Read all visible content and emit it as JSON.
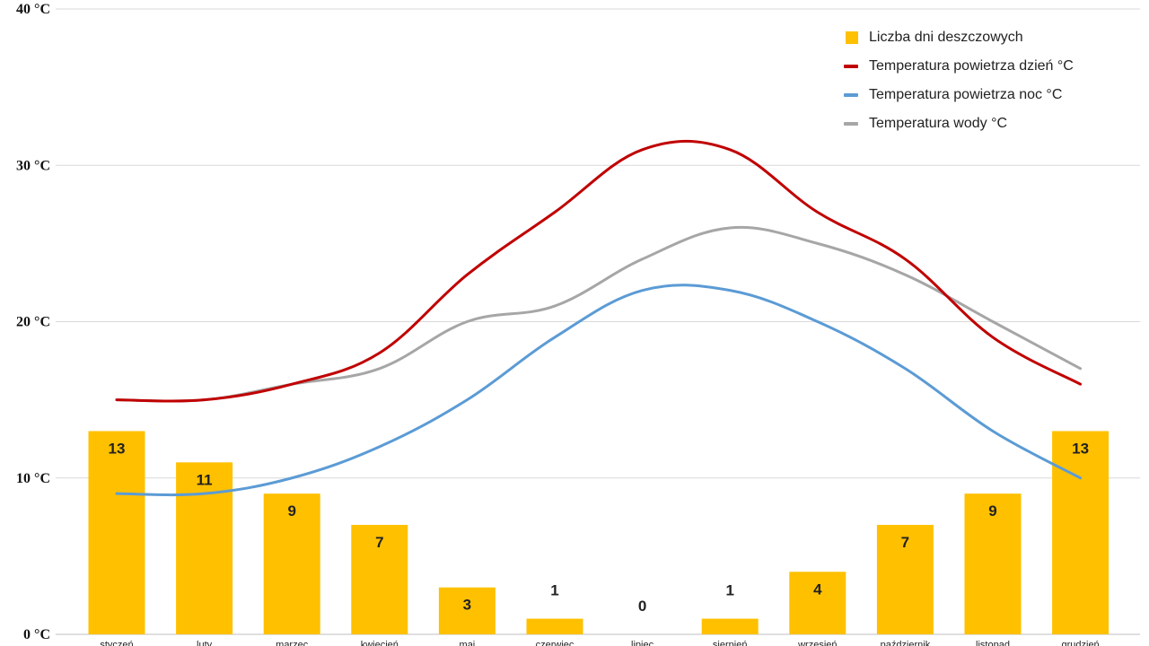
{
  "chart_data": {
    "type": "bar",
    "title": "",
    "xlabel": "",
    "ylabel": "",
    "ylim": [
      0,
      40
    ],
    "y_ticks": [
      "0 °C",
      "10 °C",
      "20 °C",
      "30 °C",
      "40 °C"
    ],
    "grid": true,
    "legend_position": "top-right",
    "categories": [
      "styczeń",
      "luty",
      "marzec",
      "kwiecień",
      "maj",
      "czerwiec",
      "lipiec",
      "sierpień",
      "wrzesień",
      "październik",
      "listopad",
      "grudzień"
    ],
    "bars": {
      "name": "Liczba dni deszczowych",
      "color": "#FFC000",
      "values": [
        13,
        11,
        9,
        7,
        3,
        1,
        0,
        1,
        4,
        7,
        9,
        13
      ]
    },
    "lines": [
      {
        "name": "Temperatura powietrza dzień °C",
        "color": "#C00000",
        "values": [
          15,
          15,
          16,
          18,
          23,
          27,
          31,
          31,
          27,
          24,
          19,
          16
        ]
      },
      {
        "name": "Temperatura powietrza noc °C",
        "color": "#5B9BD5",
        "values": [
          9,
          9,
          10,
          12,
          15,
          19,
          22,
          22,
          20,
          17,
          13,
          10
        ]
      },
      {
        "name": "Temperatura wody °C",
        "color": "#A6A6A6",
        "values": [
          15,
          15,
          16,
          17,
          20,
          21,
          24,
          26,
          25,
          23,
          20,
          17
        ]
      }
    ]
  }
}
